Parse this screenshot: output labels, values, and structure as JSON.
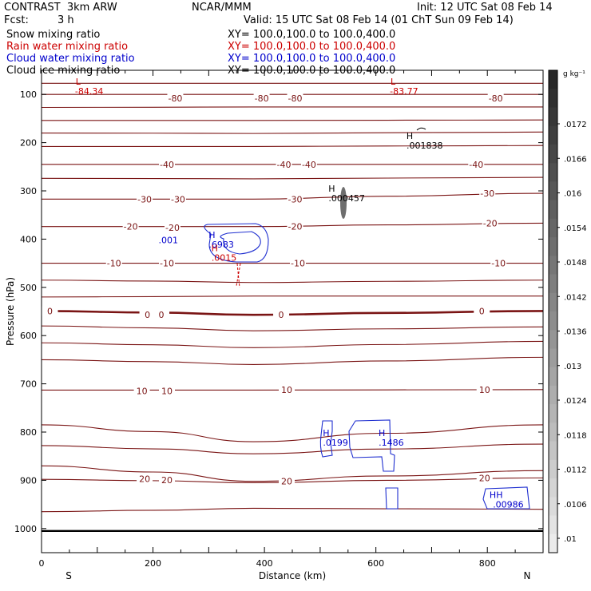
{
  "header": {
    "title_left": "CONTRAST  3km ARW",
    "center": "NCAR/MMM",
    "init": "Init: 12 UTC Sat 08 Feb 14",
    "fcst_label": "Fcst:",
    "fcst_value": "3 h",
    "valid": "Valid: 15 UTC Sat 08 Feb 14 (01 ChT Sun 09 Feb 14)"
  },
  "fields": [
    {
      "name": "Snow mixing ratio",
      "xy": "XY= 100.0,100.0 to 100.0,400.0",
      "color": "#000000"
    },
    {
      "name": "Rain water mixing ratio",
      "xy": "XY= 100.0,100.0 to 100.0,400.0",
      "color": "#cc0000"
    },
    {
      "name": "Cloud water mixing ratio",
      "xy": "XY= 100.0,100.0 to 100.0,400.0",
      "color": "#0000cc"
    },
    {
      "name": "Cloud ice mixing ratio",
      "xy": "XY= 100.0,100.0 to 100.0,400.0",
      "color": "#000000"
    }
  ],
  "chart_data": {
    "type": "contour",
    "xlabel": "Distance (km)",
    "ylabel": "Pressure (hPa)",
    "xlim": [
      0,
      900
    ],
    "ylim": [
      1050,
      50
    ],
    "x_ticks": [
      0,
      200,
      400,
      600,
      800
    ],
    "y_ticks": [
      100,
      200,
      300,
      400,
      500,
      600,
      700,
      800,
      900,
      1000
    ],
    "x_end_labels": {
      "left": "S",
      "right": "N"
    },
    "colorbar": {
      "unit": "g kg⁻¹",
      "ticks": [
        ".0172",
        ".0166",
        ".016",
        ".0154",
        ".0148",
        ".0142",
        ".0136",
        ".013",
        ".0124",
        ".0118",
        ".0112",
        ".0106",
        ".01"
      ]
    },
    "temperature_contour_labels": [
      {
        "text": "-80",
        "x": 240,
        "p": 108
      },
      {
        "text": "-80",
        "x": 395,
        "p": 108
      },
      {
        "text": "-80",
        "x": 455,
        "p": 108
      },
      {
        "text": "-80",
        "x": 815,
        "p": 108
      },
      {
        "text": "-40",
        "x": 225,
        "p": 245
      },
      {
        "text": "-40",
        "x": 435,
        "p": 245
      },
      {
        "text": "-40",
        "x": 480,
        "p": 245
      },
      {
        "text": "-40",
        "x": 780,
        "p": 245
      },
      {
        "text": "-30",
        "x": 185,
        "p": 317
      },
      {
        "text": "-30",
        "x": 245,
        "p": 317
      },
      {
        "text": "-30",
        "x": 455,
        "p": 317
      },
      {
        "text": "-30",
        "x": 800,
        "p": 305
      },
      {
        "text": "-20",
        "x": 160,
        "p": 374
      },
      {
        "text": "-20",
        "x": 235,
        "p": 376
      },
      {
        "text": "-20",
        "x": 455,
        "p": 374
      },
      {
        "text": "-20",
        "x": 805,
        "p": 367
      },
      {
        "text": "-10",
        "x": 130,
        "p": 450
      },
      {
        "text": "-10",
        "x": 225,
        "p": 450
      },
      {
        "text": "-10",
        "x": 460,
        "p": 450
      },
      {
        "text": "-10",
        "x": 820,
        "p": 450
      },
      {
        "text": "0",
        "x": 15,
        "p": 549
      },
      {
        "text": "0",
        "x": 190,
        "p": 557
      },
      {
        "text": "0",
        "x": 215,
        "p": 557
      },
      {
        "text": "0",
        "x": 430,
        "p": 557
      },
      {
        "text": "0",
        "x": 790,
        "p": 549
      },
      {
        "text": "10",
        "x": 180,
        "p": 715
      },
      {
        "text": "10",
        "x": 225,
        "p": 715
      },
      {
        "text": "10",
        "x": 440,
        "p": 712
      },
      {
        "text": "10",
        "x": 795,
        "p": 712
      },
      {
        "text": "20",
        "x": 185,
        "p": 897
      },
      {
        "text": "20",
        "x": 225,
        "p": 899
      },
      {
        "text": "20",
        "x": 440,
        "p": 902
      },
      {
        "text": "20",
        "x": 795,
        "p": 895
      }
    ],
    "extrema": [
      {
        "kind": "L",
        "value": "-84.34",
        "x": 60,
        "p": 80,
        "color": "#cc0000"
      },
      {
        "kind": "L",
        "value": "-83.77",
        "x": 625,
        "p": 80,
        "color": "#cc0000"
      },
      {
        "kind": "H",
        "value": ".001838",
        "x": 655,
        "p": 192,
        "color": "#000000"
      },
      {
        "kind": "H",
        "value": ".000457",
        "x": 515,
        "p": 302,
        "color": "#000000"
      },
      {
        "kind": "H",
        "value": ".6983",
        "x": 300,
        "p": 398,
        "color": "#0000cc"
      },
      {
        "kind": "H",
        "value": ".0015",
        "x": 305,
        "p": 425,
        "color": "#cc0000"
      },
      {
        "kind": "H",
        "value": ".0199",
        "x": 505,
        "p": 808,
        "color": "#0000cc"
      },
      {
        "kind": "H",
        "value": ".1486",
        "x": 605,
        "p": 808,
        "color": "#0000cc"
      },
      {
        "kind": "HH",
        "value": ".00986",
        "x": 810,
        "p": 937,
        "color": "#0000cc"
      }
    ],
    "contour_value_labels": [
      {
        "text": ".001",
        "x": 245,
        "p": 402,
        "color": "#0000cc"
      }
    ],
    "isotherm_pressure_levels": [
      {
        "left": 77,
        "mid": 77,
        "right": 77
      },
      {
        "left": 100,
        "mid": 100,
        "right": 100
      },
      {
        "left": 127,
        "mid": 126,
        "right": 126
      },
      {
        "left": 154,
        "mid": 154,
        "right": 153
      },
      {
        "left": 180,
        "mid": 181,
        "right": 178
      },
      {
        "left": 208,
        "mid": 208,
        "right": 206
      },
      {
        "left": 245,
        "mid": 245,
        "right": 245
      },
      {
        "left": 274,
        "mid": 275,
        "right": 272
      },
      {
        "left": 317,
        "mid": 317,
        "right": 305
      },
      {
        "left": 374,
        "mid": 374,
        "right": 367
      },
      {
        "left": 450,
        "mid": 450,
        "right": 450
      },
      {
        "left": 485,
        "mid": 490,
        "right": 485
      },
      {
        "left": 520,
        "mid": 518,
        "right": 518
      },
      {
        "left": 549,
        "mid": 557,
        "right": 549
      },
      {
        "left": 580,
        "mid": 590,
        "right": 582
      },
      {
        "left": 615,
        "mid": 625,
        "right": 612
      },
      {
        "left": 650,
        "mid": 660,
        "right": 645
      },
      {
        "left": 713,
        "mid": 713,
        "right": 712
      },
      {
        "left": 785,
        "mid": 820,
        "right": 785
      },
      {
        "left": 828,
        "mid": 845,
        "right": 825
      },
      {
        "left": 870,
        "mid": 902,
        "right": 880
      },
      {
        "left": 898,
        "mid": 905,
        "right": 895
      },
      {
        "left": 965,
        "mid": 958,
        "right": 960
      }
    ],
    "surface_pressure": 1005
  }
}
